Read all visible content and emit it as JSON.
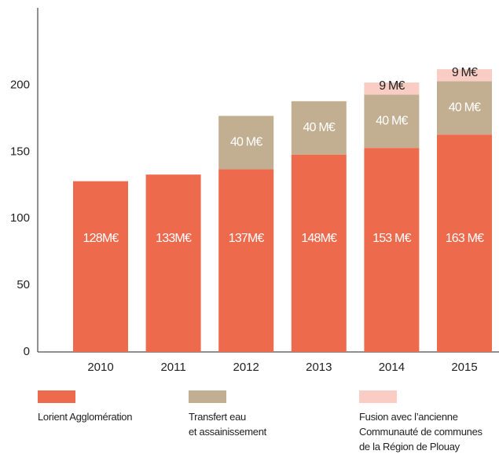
{
  "chart_data": {
    "type": "stacked-bar",
    "categories": [
      "2010",
      "2011",
      "2012",
      "2013",
      "2014",
      "2015"
    ],
    "series": [
      {
        "name": "Lorient Agglomération",
        "color": "#ee6a4d",
        "values": [
          128,
          133,
          137,
          148,
          153,
          163
        ],
        "value_labels": [
          "128M€",
          "133M€",
          "137M€",
          "148M€",
          "153 M€",
          "163 M€"
        ]
      },
      {
        "name": "Transfert eau\net assainissement",
        "color": "#c2af91",
        "values": [
          null,
          null,
          40,
          40,
          40,
          40
        ],
        "value_labels": [
          null,
          null,
          "40 M€",
          "40 M€",
          "40 M€",
          "40 M€"
        ]
      },
      {
        "name": "Fusion avec l’ancienne\nCommunauté de communes\nde la Région de Plouay",
        "color": "#f9cdc3",
        "values": [
          null,
          null,
          null,
          null,
          9,
          9
        ],
        "value_labels": [
          null,
          null,
          null,
          null,
          "9 M€",
          "9 M€"
        ]
      }
    ],
    "ylim": [
      0,
      258
    ],
    "yticks": [
      0,
      50,
      100,
      150,
      200
    ],
    "grid": false
  }
}
